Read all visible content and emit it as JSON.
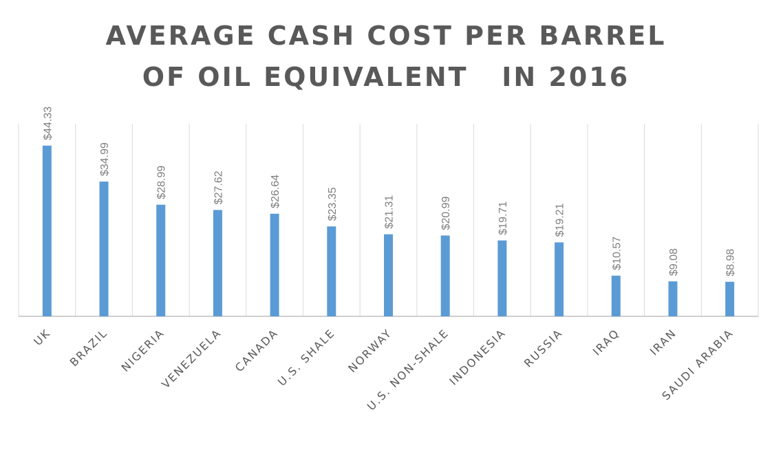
{
  "chart_data": {
    "type": "bar",
    "title_lines": [
      "AVERAGE CASH COST PER BARREL",
      "OF OIL EQUIVALENT   IN 2016"
    ],
    "categories": [
      "UK",
      "BRAZIL",
      "NIGERIA",
      "VENEZUELA",
      "CANADA",
      "U.S. SHALE",
      "NORWAY",
      "U.S. NON-SHALE",
      "INDONESIA",
      "RUSSIA",
      "IRAQ",
      "IRAN",
      "SAUDI ARABIA"
    ],
    "values": [
      44.33,
      34.99,
      28.99,
      27.62,
      26.64,
      23.35,
      21.31,
      20.99,
      19.71,
      19.21,
      10.57,
      9.08,
      8.98
    ],
    "value_labels": [
      "$44.33",
      "$34.99",
      "$28.99",
      "$27.62",
      "$26.64",
      "$23.35",
      "$21.31",
      "$20.99",
      "$19.71",
      "$19.21",
      "$10.57",
      "$9.08",
      "$8.98"
    ],
    "bar_color": "#5b9bd5",
    "grid": "vertical",
    "ylim": [
      0,
      50
    ],
    "xlabel": "",
    "ylabel": ""
  }
}
